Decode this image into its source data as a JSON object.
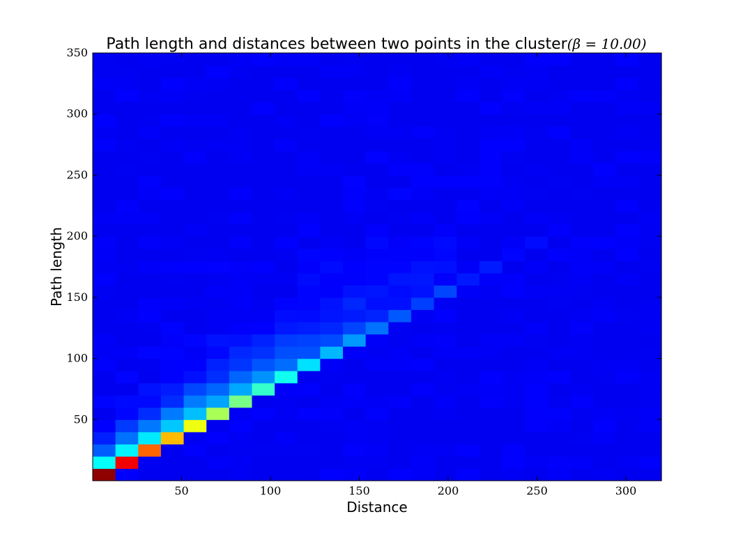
{
  "chart_data": {
    "type": "heatmap",
    "title_text": "Path length and distances between two points in the cluster",
    "title_math": "(β = 10.00)",
    "xlabel": "Distance",
    "ylabel": "Path length",
    "xlim": [
      0,
      320
    ],
    "ylim": [
      0,
      350
    ],
    "x_ticks": [
      "50",
      "100",
      "150",
      "200",
      "250",
      "300"
    ],
    "y_ticks": [
      "50",
      "100",
      "150",
      "200",
      "250",
      "300",
      "350"
    ],
    "colormap": "jet",
    "grid": false,
    "legend": "none",
    "cell_counts": [
      25,
      35
    ],
    "diagonal_peak_by_column": [
      1.0,
      0.88,
      0.78,
      0.68,
      0.62,
      0.55,
      0.5,
      0.44,
      0.39,
      0.35,
      0.31,
      0.28,
      0.25,
      0.22,
      0.2,
      0.18,
      0.16,
      0.15,
      0.14,
      0.13,
      0.12,
      0.11,
      0.1,
      0.09,
      0.07
    ]
  }
}
